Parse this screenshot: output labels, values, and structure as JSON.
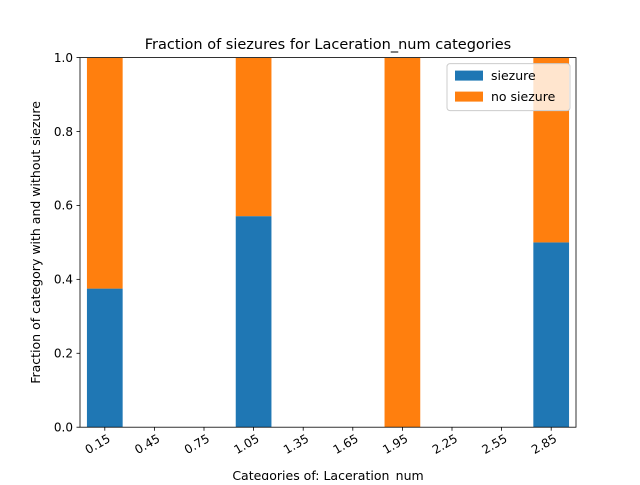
{
  "chart_data": {
    "type": "bar",
    "stacked": true,
    "title": "Fraction of siezures for Laceration_num categories",
    "xlabel": "Categories of: Laceration_num",
    "ylabel": "Fraction of category with and without siezure",
    "categories": [
      "0.15",
      "0.45",
      "0.75",
      "1.05",
      "1.35",
      "1.65",
      "1.95",
      "2.25",
      "2.55",
      "2.85"
    ],
    "x_tick_rotation": 30,
    "ylim": [
      0,
      1.0
    ],
    "yticks": [
      "0.0",
      "0.2",
      "0.4",
      "0.6",
      "0.8",
      "1.0"
    ],
    "ytick_values": [
      0.0,
      0.2,
      0.4,
      0.6,
      0.8,
      1.0
    ],
    "grid": false,
    "legend_position": "top-right",
    "series": [
      {
        "name": "siezure",
        "color": "#1f77b4",
        "values": [
          0.375,
          null,
          null,
          0.571,
          null,
          null,
          0.0,
          null,
          null,
          0.5
        ]
      },
      {
        "name": "no siezure",
        "color": "#ff7f0e",
        "values": [
          0.625,
          null,
          null,
          0.429,
          null,
          null,
          1.0,
          null,
          null,
          0.5
        ]
      }
    ]
  }
}
